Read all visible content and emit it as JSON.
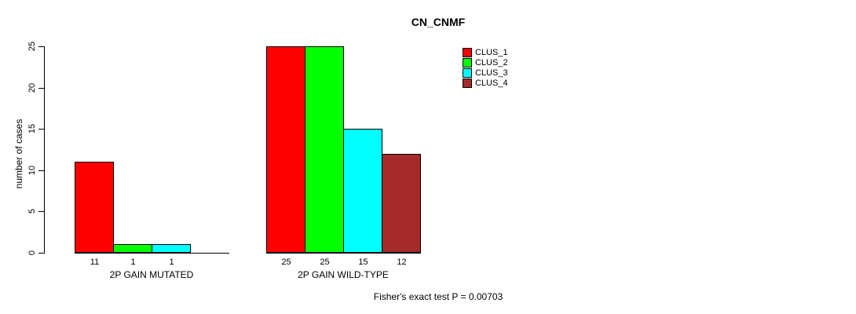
{
  "chart_data": {
    "type": "bar",
    "title": "CN_CNMF",
    "ylabel": "number of cases",
    "ylim": [
      0,
      25
    ],
    "yticks": [
      0,
      5,
      10,
      15,
      20,
      25
    ],
    "grid": false,
    "legend_position": "top-right",
    "categories": [
      "2P GAIN MUTATED",
      "2P GAIN WILD-TYPE"
    ],
    "series": [
      {
        "name": "CLUS_1",
        "color": "#ff0000",
        "values": [
          11,
          25
        ]
      },
      {
        "name": "CLUS_2",
        "color": "#00ff00",
        "values": [
          1,
          25
        ]
      },
      {
        "name": "CLUS_3",
        "color": "#00ffff",
        "values": [
          1,
          15
        ]
      },
      {
        "name": "CLUS_4",
        "color": "#a52a2a",
        "values": [
          0,
          12
        ]
      }
    ],
    "bar_value_labels": [
      [
        "11",
        "1",
        "1",
        ""
      ],
      [
        "25",
        "25",
        "15",
        "12"
      ]
    ],
    "footer": "Fisher's exact test P = 0.00703"
  }
}
